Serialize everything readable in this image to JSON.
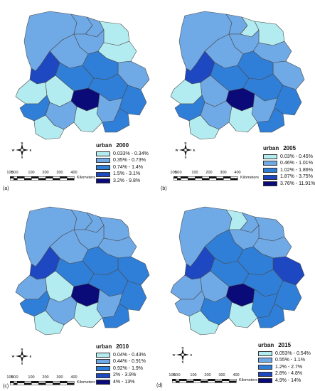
{
  "colors": {
    "class1": "#b3ecf0",
    "class2": "#6fa9e6",
    "class3": "#2f7fd9",
    "class4": "#1e47c2",
    "class5": "#0a0a78",
    "outline": "#4a4a4a"
  },
  "scale": {
    "ticks": [
      "100",
      "50",
      "0",
      "100",
      "200",
      "300",
      "400"
    ],
    "unit": "Kilometers"
  },
  "compass": {
    "n": "N",
    "s": "S",
    "e": "E",
    "w": "W"
  },
  "panels": [
    {
      "label": "(a)",
      "title": "urban",
      "year": "2000",
      "classes": [
        "0.033% - 0.34%",
        "0.35% - 0.73%",
        "0.74% - 1.4%",
        "1.5% - 3.1%",
        "3.2% - 9.8%"
      ]
    },
    {
      "label": "(b)",
      "title": "urban",
      "year": "2005",
      "classes": [
        "0.03% - 0.45%",
        "0.46% - 1.01%",
        "1.02% - 1.86%",
        "1.87% - 3.75%",
        "3.76% - 11.91%"
      ]
    },
    {
      "label": "(c)",
      "title": "urban",
      "year": "2010",
      "classes": [
        "0.04% - 0.43%",
        "0.44% - 0.91%",
        "0.92% - 1.9%",
        "2% - 3.9%",
        "4% - 13%"
      ]
    },
    {
      "label": "(d)",
      "title": "urban",
      "year": "2015",
      "classes": [
        "0.053% - 0.54%",
        "0.55% - 1.1%",
        "1.2% - 2.7%",
        "2.8% - 4.8%",
        "4.9% - 14%"
      ]
    }
  ]
}
